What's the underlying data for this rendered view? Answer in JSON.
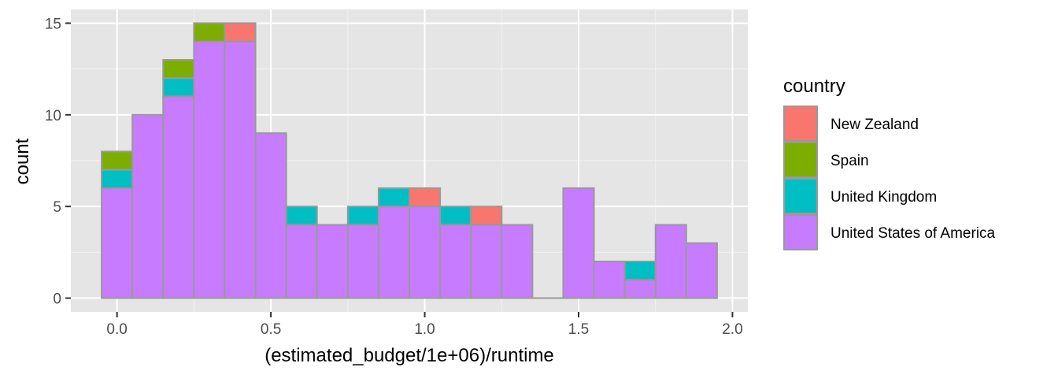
{
  "chart_data": {
    "type": "bar",
    "subtype": "stacked-histogram",
    "xlabel": "(estimated_budget/1e+06)/runtime",
    "ylabel": "count",
    "xlim": [
      -0.15,
      2.05
    ],
    "ylim": [
      -0.75,
      15.75
    ],
    "x_ticks": [
      0.0,
      0.5,
      1.0,
      1.5,
      2.0
    ],
    "x_tick_labels": [
      "0.0",
      "0.5",
      "1.0",
      "1.5",
      "2.0"
    ],
    "y_ticks": [
      0,
      5,
      10,
      15
    ],
    "y_tick_labels": [
      "0",
      "5",
      "10",
      "15"
    ],
    "bin_width": 0.1,
    "bin_centers": [
      0.0,
      0.1,
      0.2,
      0.3,
      0.4,
      0.5,
      0.6,
      0.7,
      0.8,
      0.9,
      1.0,
      1.1,
      1.2,
      1.3,
      1.4,
      1.5,
      1.6,
      1.7,
      1.8,
      1.9
    ],
    "legend_title": "country",
    "legend_position": "right",
    "grid": true,
    "bar_outline_color": "#999999",
    "panel_background": "#e5e5e5",
    "series": [
      {
        "name": "New Zealand",
        "color": "#F8766D",
        "values": [
          0,
          0,
          0,
          0,
          1,
          0,
          0,
          0,
          0,
          0,
          1,
          0,
          1,
          0,
          0,
          0,
          0,
          0,
          0,
          0
        ]
      },
      {
        "name": "Spain",
        "color": "#7CAE00",
        "values": [
          1,
          0,
          1,
          1,
          0,
          0,
          0,
          0,
          0,
          0,
          0,
          0,
          0,
          0,
          0,
          0,
          0,
          0,
          0,
          0
        ]
      },
      {
        "name": "United Kingdom",
        "color": "#00BFC4",
        "values": [
          1,
          0,
          1,
          0,
          0,
          0,
          1,
          0,
          1,
          1,
          0,
          1,
          0,
          0,
          0,
          0,
          0,
          1,
          0,
          0
        ]
      },
      {
        "name": "United States of America",
        "color": "#C77CFF",
        "values": [
          6,
          10,
          11,
          14,
          14,
          9,
          4,
          4,
          4,
          5,
          5,
          4,
          4,
          4,
          0,
          6,
          2,
          1,
          4,
          3
        ]
      }
    ]
  }
}
